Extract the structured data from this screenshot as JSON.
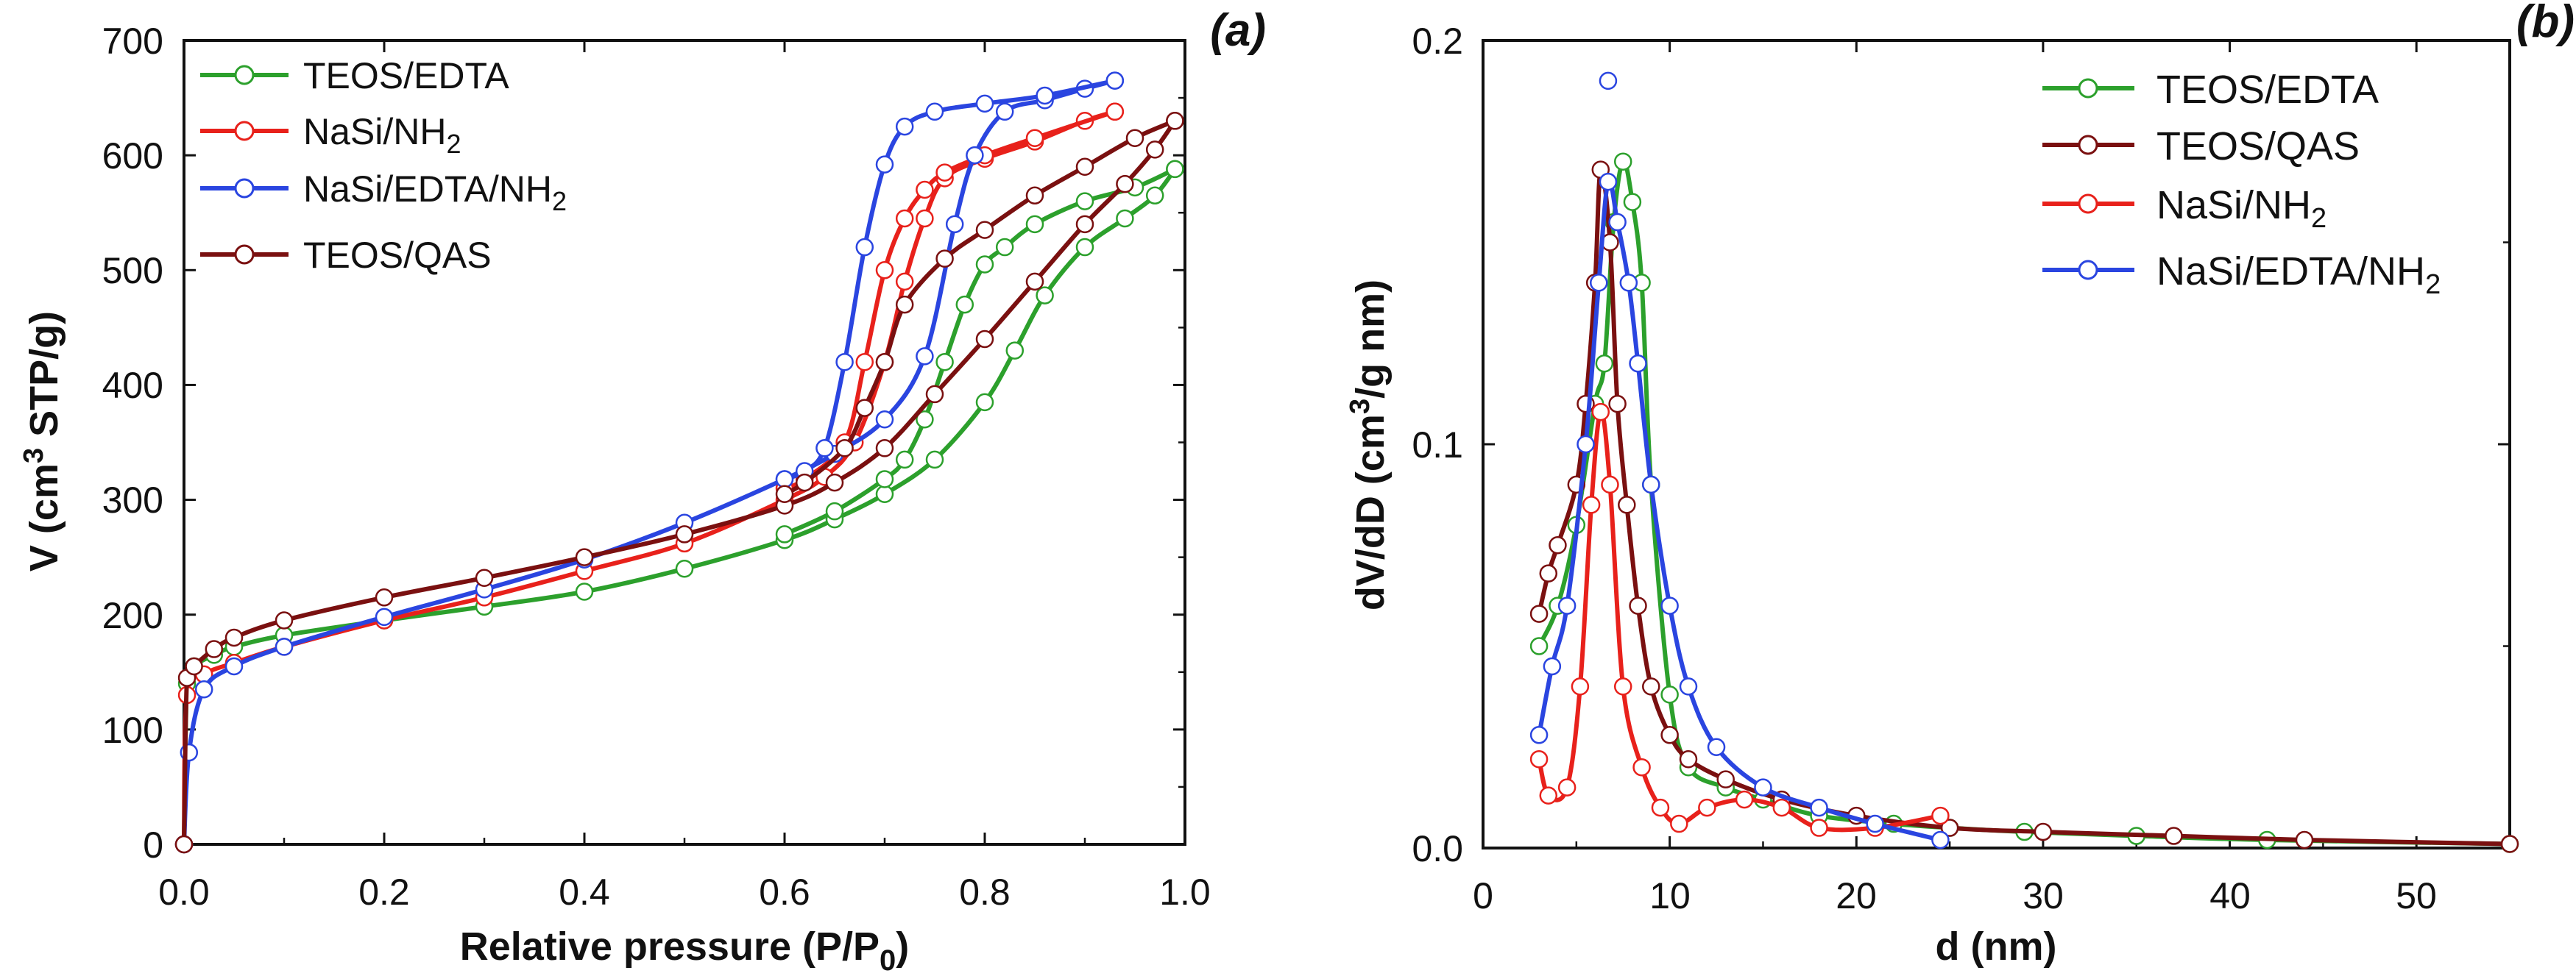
{
  "chart_data": [
    {
      "type": "line",
      "panel_label": "(a)",
      "xlabel": "Relative pressure (P/P",
      "xlabel_sub": "0",
      "xlabel_close": ")",
      "ylabel": "V (cm",
      "ylabel_sup": "3",
      "ylabel_rest": " STP/g)",
      "xlim": [
        0.0,
        1.0
      ],
      "ylim": [
        0,
        700
      ],
      "x_ticks": [
        0.0,
        0.2,
        0.4,
        0.6,
        0.8,
        1.0
      ],
      "x_tick_labels": [
        "0.0",
        "0.2",
        "0.4",
        "0.6",
        "0.8",
        "1.0"
      ],
      "y_ticks": [
        0,
        100,
        200,
        300,
        400,
        500,
        600,
        700
      ],
      "y_tick_labels": [
        "0",
        "100",
        "200",
        "300",
        "400",
        "500",
        "600",
        "700"
      ],
      "legend_position": "top-left",
      "series": [
        {
          "name": "TEOS/EDTA",
          "label": "TEOS/EDTA",
          "color": "#2ca02c",
          "adsorption": [
            [
              0.0,
              0
            ],
            [
              0.003,
              140
            ],
            [
              0.01,
              155
            ],
            [
              0.03,
              165
            ],
            [
              0.05,
              172
            ],
            [
              0.1,
              182
            ],
            [
              0.2,
              195
            ],
            [
              0.3,
              207
            ],
            [
              0.4,
              220
            ],
            [
              0.5,
              240
            ],
            [
              0.6,
              265
            ],
            [
              0.65,
              283
            ],
            [
              0.7,
              305
            ],
            [
              0.75,
              335
            ],
            [
              0.8,
              385
            ],
            [
              0.83,
              430
            ],
            [
              0.86,
              478
            ],
            [
              0.9,
              520
            ],
            [
              0.94,
              545
            ],
            [
              0.97,
              565
            ],
            [
              0.99,
              588
            ]
          ],
          "desorption": [
            [
              0.99,
              588
            ],
            [
              0.95,
              572
            ],
            [
              0.9,
              560
            ],
            [
              0.85,
              540
            ],
            [
              0.82,
              520
            ],
            [
              0.8,
              505
            ],
            [
              0.78,
              470
            ],
            [
              0.76,
              420
            ],
            [
              0.74,
              370
            ],
            [
              0.72,
              335
            ],
            [
              0.7,
              318
            ],
            [
              0.65,
              290
            ],
            [
              0.6,
              270
            ]
          ]
        },
        {
          "name": "NaSi/NH2",
          "label": "NaSi/NH",
          "label_sub": "2",
          "color": "#e8211b",
          "adsorption": [
            [
              0.0,
              0
            ],
            [
              0.003,
              130
            ],
            [
              0.02,
              148
            ],
            [
              0.05,
              158
            ],
            [
              0.1,
              172
            ],
            [
              0.2,
              195
            ],
            [
              0.3,
              215
            ],
            [
              0.4,
              238
            ],
            [
              0.5,
              262
            ],
            [
              0.6,
              300
            ],
            [
              0.64,
              320
            ],
            [
              0.67,
              350
            ],
            [
              0.7,
              420
            ],
            [
              0.72,
              490
            ],
            [
              0.74,
              545
            ],
            [
              0.76,
              580
            ],
            [
              0.8,
              597
            ],
            [
              0.85,
              612
            ],
            [
              0.9,
              630
            ],
            [
              0.93,
              638
            ]
          ],
          "desorption": [
            [
              0.93,
              638
            ],
            [
              0.85,
              615
            ],
            [
              0.8,
              600
            ],
            [
              0.76,
              585
            ],
            [
              0.74,
              570
            ],
            [
              0.72,
              545
            ],
            [
              0.7,
              500
            ],
            [
              0.68,
              420
            ],
            [
              0.66,
              350
            ],
            [
              0.62,
              318
            ],
            [
              0.6,
              310
            ]
          ]
        },
        {
          "name": "NaSi/EDTA/NH2",
          "label": "NaSi/EDTA/NH",
          "label_sub": "2",
          "color": "#2a45e0",
          "adsorption": [
            [
              0.0,
              0
            ],
            [
              0.005,
              80
            ],
            [
              0.02,
              135
            ],
            [
              0.05,
              155
            ],
            [
              0.1,
              172
            ],
            [
              0.2,
              198
            ],
            [
              0.3,
              222
            ],
            [
              0.4,
              248
            ],
            [
              0.5,
              280
            ],
            [
              0.6,
              318
            ],
            [
              0.65,
              340
            ],
            [
              0.7,
              370
            ],
            [
              0.74,
              425
            ],
            [
              0.77,
              540
            ],
            [
              0.79,
              600
            ],
            [
              0.82,
              638
            ],
            [
              0.86,
              648
            ],
            [
              0.9,
              658
            ],
            [
              0.93,
              665
            ]
          ],
          "desorption": [
            [
              0.93,
              665
            ],
            [
              0.86,
              652
            ],
            [
              0.8,
              645
            ],
            [
              0.75,
              638
            ],
            [
              0.72,
              625
            ],
            [
              0.7,
              592
            ],
            [
              0.68,
              520
            ],
            [
              0.66,
              420
            ],
            [
              0.64,
              345
            ],
            [
              0.62,
              325
            ],
            [
              0.6,
              318
            ]
          ]
        },
        {
          "name": "TEOS/QAS",
          "label": "TEOS/QAS",
          "color": "#7a1010",
          "adsorption": [
            [
              0.0,
              0
            ],
            [
              0.003,
              145
            ],
            [
              0.01,
              155
            ],
            [
              0.03,
              170
            ],
            [
              0.05,
              180
            ],
            [
              0.1,
              195
            ],
            [
              0.2,
              215
            ],
            [
              0.3,
              232
            ],
            [
              0.4,
              250
            ],
            [
              0.5,
              270
            ],
            [
              0.6,
              295
            ],
            [
              0.65,
              315
            ],
            [
              0.7,
              345
            ],
            [
              0.75,
              392
            ],
            [
              0.8,
              440
            ],
            [
              0.85,
              490
            ],
            [
              0.9,
              540
            ],
            [
              0.94,
              575
            ],
            [
              0.97,
              605
            ],
            [
              0.99,
              630
            ]
          ],
          "desorption": [
            [
              0.99,
              630
            ],
            [
              0.95,
              615
            ],
            [
              0.9,
              590
            ],
            [
              0.85,
              565
            ],
            [
              0.8,
              535
            ],
            [
              0.76,
              510
            ],
            [
              0.72,
              470
            ],
            [
              0.7,
              420
            ],
            [
              0.68,
              380
            ],
            [
              0.66,
              345
            ],
            [
              0.62,
              315
            ],
            [
              0.6,
              305
            ]
          ]
        }
      ]
    },
    {
      "type": "line",
      "panel_label": "(b)",
      "xlabel": "d (nm)",
      "ylabel": "dV/dD (cm",
      "ylabel_sup": "3",
      "ylabel_rest": "/g nm)",
      "xlim": [
        0,
        55
      ],
      "ylim": [
        0.0,
        0.2
      ],
      "x_ticks": [
        0,
        10,
        20,
        30,
        40,
        50
      ],
      "x_tick_labels": [
        "0",
        "10",
        "20",
        "30",
        "40",
        "50"
      ],
      "y_ticks": [
        0.0,
        0.1,
        0.2
      ],
      "y_tick_labels": [
        "0.0",
        "0.1",
        "0.2"
      ],
      "legend_position": "top-right",
      "series": [
        {
          "name": "TEOS/EDTA",
          "label": "TEOS/EDTA",
          "color": "#2ca02c",
          "points": [
            [
              3,
              0.05
            ],
            [
              4,
              0.06
            ],
            [
              5,
              0.08
            ],
            [
              6,
              0.11
            ],
            [
              6.5,
              0.12
            ],
            [
              7,
              0.155
            ],
            [
              7.5,
              0.17
            ],
            [
              8,
              0.16
            ],
            [
              8.5,
              0.14
            ],
            [
              9,
              0.09
            ],
            [
              10,
              0.038
            ],
            [
              11,
              0.02
            ],
            [
              13,
              0.015
            ],
            [
              15,
              0.012
            ],
            [
              18,
              0.008
            ],
            [
              22,
              0.006
            ],
            [
              25,
              0.005
            ],
            [
              29,
              0.004
            ],
            [
              35,
              0.003
            ],
            [
              42,
              0.002
            ],
            [
              55,
              0.001
            ]
          ]
        },
        {
          "name": "TEOS/QAS",
          "label": "TEOS/QAS",
          "color": "#7a1010",
          "points": [
            [
              3,
              0.058
            ],
            [
              3.5,
              0.068
            ],
            [
              4,
              0.075
            ],
            [
              5,
              0.09
            ],
            [
              5.5,
              0.11
            ],
            [
              6,
              0.14
            ],
            [
              6.3,
              0.168
            ],
            [
              6.8,
              0.15
            ],
            [
              7.2,
              0.11
            ],
            [
              7.7,
              0.085
            ],
            [
              8.3,
              0.06
            ],
            [
              9,
              0.04
            ],
            [
              10,
              0.028
            ],
            [
              11,
              0.022
            ],
            [
              13,
              0.017
            ],
            [
              16,
              0.012
            ],
            [
              20,
              0.008
            ],
            [
              25,
              0.005
            ],
            [
              30,
              0.004
            ],
            [
              37,
              0.003
            ],
            [
              44,
              0.002
            ],
            [
              55,
              0.001
            ]
          ]
        },
        {
          "name": "NaSi/NH2",
          "label": "NaSi/NH",
          "label_sub": "2",
          "color": "#e8211b",
          "points": [
            [
              3,
              0.022
            ],
            [
              3.5,
              0.013
            ],
            [
              4.5,
              0.015
            ],
            [
              5.2,
              0.04
            ],
            [
              5.8,
              0.085
            ],
            [
              6.3,
              0.108
            ],
            [
              6.8,
              0.09
            ],
            [
              7.5,
              0.04
            ],
            [
              8.5,
              0.02
            ],
            [
              9.5,
              0.01
            ],
            [
              10.5,
              0.006
            ],
            [
              12,
              0.01
            ],
            [
              14,
              0.012
            ],
            [
              16,
              0.01
            ],
            [
              18,
              0.005
            ],
            [
              21,
              0.005
            ],
            [
              24.5,
              0.008
            ]
          ]
        },
        {
          "name": "NaSi/EDTA/NH2",
          "label": "NaSi/EDTA/NH",
          "label_sub": "2",
          "color": "#2a45e0",
          "points": [
            [
              3,
              0.028
            ],
            [
              3.7,
              0.045
            ],
            [
              4.5,
              0.06
            ],
            [
              5.5,
              0.1
            ],
            [
              6.2,
              0.14
            ],
            [
              6.7,
              0.165
            ],
            [
              7.2,
              0.155
            ],
            [
              7.8,
              0.14
            ],
            [
              8.3,
              0.12
            ],
            [
              9,
              0.09
            ],
            [
              10,
              0.06
            ],
            [
              11,
              0.04
            ],
            [
              12.5,
              0.025
            ],
            [
              15,
              0.015
            ],
            [
              18,
              0.01
            ],
            [
              21,
              0.006
            ],
            [
              24.5,
              0.002
            ]
          ]
        }
      ],
      "outlier_point": {
        "series": "NaSi/EDTA/NH2",
        "x": 6.7,
        "y": 0.19
      }
    }
  ]
}
